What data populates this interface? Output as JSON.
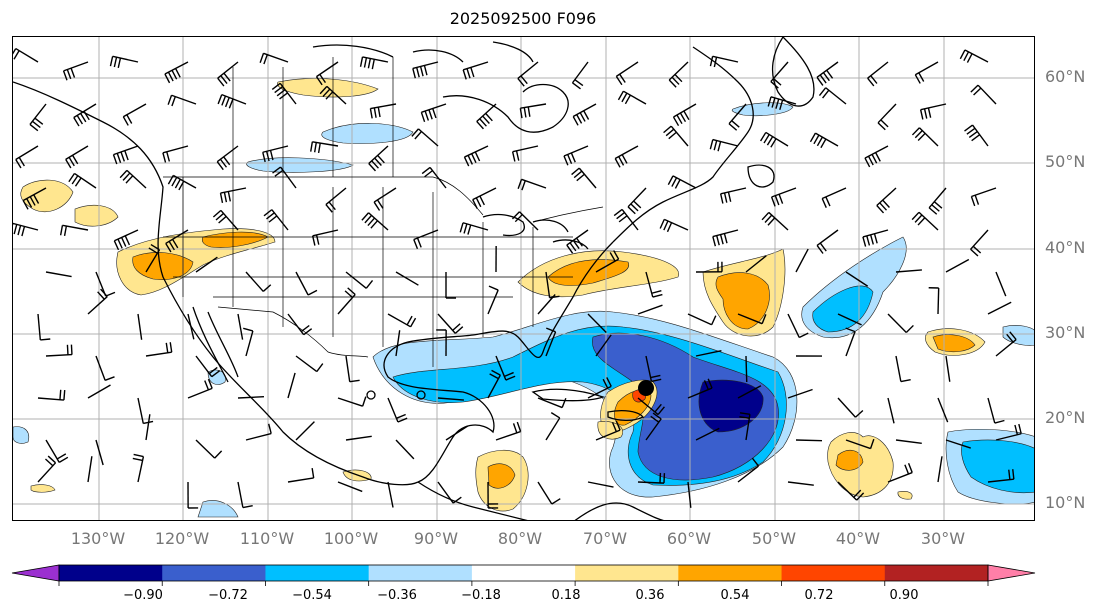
{
  "title": "2025092500 F096",
  "lat_labels": [
    "60°N",
    "50°N",
    "40°N",
    "30°N",
    "20°N",
    "10°N"
  ],
  "lon_labels": [
    "130°W",
    "120°W",
    "110°W",
    "100°W",
    "90°W",
    "80°W",
    "70°W",
    "60°W",
    "50°W",
    "40°W",
    "30°W"
  ],
  "colorbar": {
    "ticks": [
      "−0.90",
      "−0.72",
      "−0.54",
      "−0.36",
      "−0.18",
      "0.18",
      "0.36",
      "0.54",
      "0.72",
      "0.90"
    ],
    "colors": [
      "#9b30d0",
      "#00008b",
      "#3a5fcd",
      "#00bfff",
      "#b0e0ff",
      "#ffffff",
      "#ffe68f",
      "#ffa500",
      "#ff4500",
      "#b22222",
      "#ff7fa8"
    ]
  }
}
